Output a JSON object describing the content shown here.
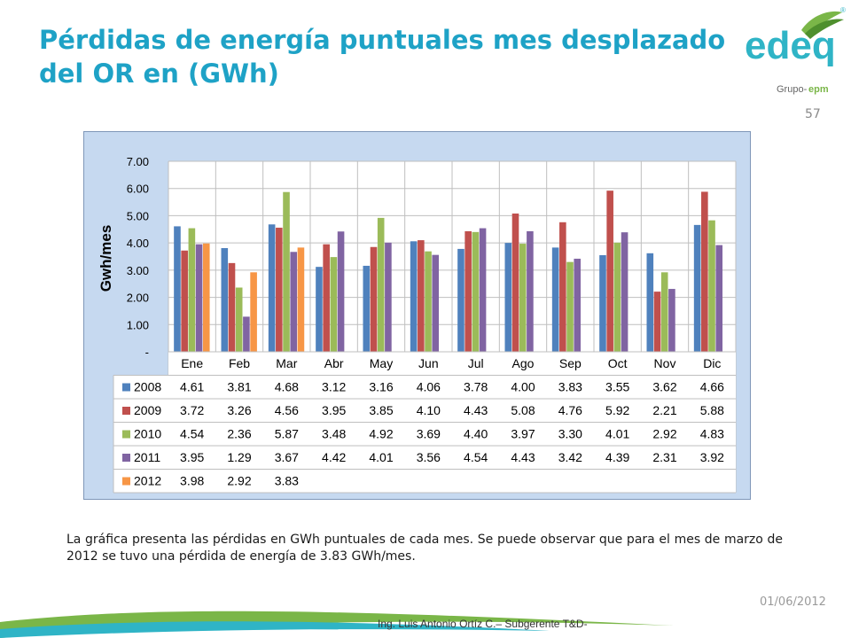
{
  "slide": {
    "title": "Pérdidas de energía puntuales mes desplazado del OR en (GWh)",
    "page_number": "57",
    "caption": "La gráfica presenta las pérdidas en GWh puntuales de cada mes. Se puede observar que para el mes de marzo de 2012 se tuvo una pérdida de energía de 3.83 GWh/mes.",
    "date": "01/06/2012",
    "footer": "Ing. Luis Antonio Ortíz C.– Subgerente T&D-"
  },
  "logo": {
    "name": "edeq",
    "group_prefix": "Grupo-",
    "group_name": "epm",
    "mark": "®",
    "colors": {
      "text": "#2fb4c6",
      "leaf_green": "#7ab648",
      "leaf_dark": "#4e8f2d",
      "group_text": "#666666"
    }
  },
  "chart_data": {
    "type": "bar",
    "ylabel": "Gwh/mes",
    "ylim": [
      0,
      7
    ],
    "yticks": [
      "-",
      "1.00",
      "2.00",
      "3.00",
      "4.00",
      "5.00",
      "6.00",
      "7.00"
    ],
    "grid": true,
    "categories": [
      "Ene",
      "Feb",
      "Mar",
      "Abr",
      "May",
      "Jun",
      "Jul",
      "Ago",
      "Sep",
      "Oct",
      "Nov",
      "Dic"
    ],
    "series": [
      {
        "name": "2008",
        "color": "#4f81bd",
        "values": [
          4.61,
          3.81,
          4.68,
          3.12,
          3.16,
          4.06,
          3.78,
          4.0,
          3.83,
          3.55,
          3.62,
          4.66
        ]
      },
      {
        "name": "2009",
        "color": "#c0504d",
        "values": [
          3.72,
          3.26,
          4.56,
          3.95,
          3.85,
          4.1,
          4.43,
          5.08,
          4.76,
          5.92,
          2.21,
          5.88
        ]
      },
      {
        "name": "2010",
        "color": "#9bbb59",
        "values": [
          4.54,
          2.36,
          5.87,
          3.48,
          4.92,
          3.69,
          4.4,
          3.97,
          3.3,
          4.01,
          2.92,
          4.83
        ]
      },
      {
        "name": "2011",
        "color": "#8064a2",
        "values": [
          3.95,
          1.29,
          3.67,
          4.42,
          4.01,
          3.56,
          4.54,
          4.43,
          3.42,
          4.39,
          2.31,
          3.92
        ]
      },
      {
        "name": "2012",
        "color": "#f79646",
        "values": [
          3.98,
          2.92,
          3.83,
          null,
          null,
          null,
          null,
          null,
          null,
          null,
          null,
          null
        ]
      }
    ],
    "table": {
      "2008": [
        "4.61",
        "3.81",
        "4.68",
        "3.12",
        "3.16",
        "4.06",
        "3.78",
        "4.00",
        "3.83",
        "3.55",
        "3.62",
        "4.66"
      ],
      "2009": [
        "3.72",
        "3.26",
        "4.56",
        "3.95",
        "3.85",
        "4.10",
        "4.43",
        "5.08",
        "4.76",
        "5.92",
        "2.21",
        "5.88"
      ],
      "2010": [
        "4.54",
        "2.36",
        "5.87",
        "3.48",
        "4.92",
        "3.69",
        "4.40",
        "3.97",
        "3.30",
        "4.01",
        "2.92",
        "4.83"
      ],
      "2011": [
        "3.95",
        "1.29",
        "3.67",
        "4.42",
        "4.01",
        "3.56",
        "4.54",
        "4.43",
        "3.42",
        "4.39",
        "2.31",
        "3.92"
      ],
      "2012": [
        "3.98",
        "2.92",
        "3.83",
        "",
        "",
        "",
        "",
        "",
        "",
        "",
        "",
        ""
      ]
    },
    "colors": {
      "plot_bg": "#ffffff",
      "frame_bg": "#c6d9f0",
      "grid": "#bfbfbf"
    }
  }
}
